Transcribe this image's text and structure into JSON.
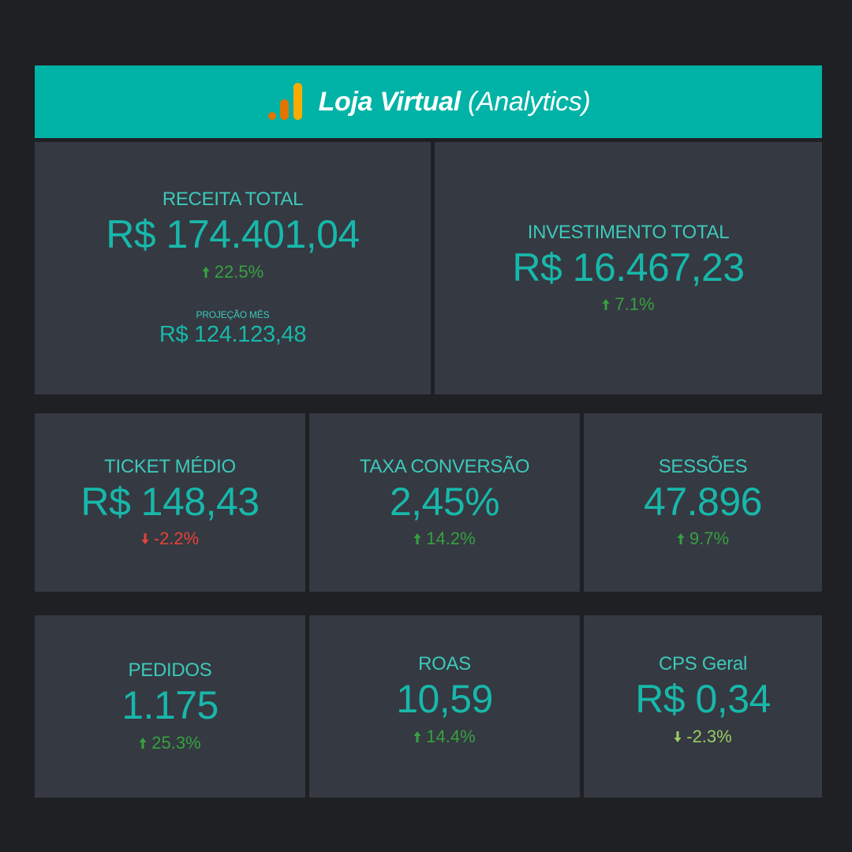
{
  "header": {
    "title_bold": "Loja Virtual",
    "title_rest": "(Analytics)",
    "logo_icon": "analytics-bar-chart-icon",
    "background": "#00b3a6"
  },
  "colors": {
    "card": "#353941",
    "accent": "#17b8ab",
    "positive": "#36a142",
    "negative": "#e5433a",
    "soft_positive": "#9ccc65"
  },
  "receita": {
    "label": "RECEITA TOTAL",
    "value": "R$ 174.401,04",
    "delta": "22.5%",
    "projection_label": "PROJEÇÃO MÊS",
    "projection_value": "R$ 124.123,48"
  },
  "investimento": {
    "label": "INVESTIMENTO TOTAL",
    "value": "R$ 16.467,23",
    "delta": "7.1%"
  },
  "ticket": {
    "label": "TICKET MÉDIO",
    "value": "R$ 148,43",
    "delta": "-2.2%"
  },
  "conversao": {
    "label": "TAXA CONVERSÃO",
    "value": "2,45%",
    "delta": "14.2%"
  },
  "sessoes": {
    "label": "SESSÕES",
    "value": "47.896",
    "delta": "9.7%"
  },
  "pedidos": {
    "label": "PEDIDOS",
    "value": "1.175",
    "delta": "25.3%"
  },
  "roas": {
    "label": "ROAS",
    "value": "10,59",
    "delta": "14.4%"
  },
  "cps": {
    "label": "CPS Geral",
    "value": "R$ 0,34",
    "delta": "-2.3%"
  }
}
